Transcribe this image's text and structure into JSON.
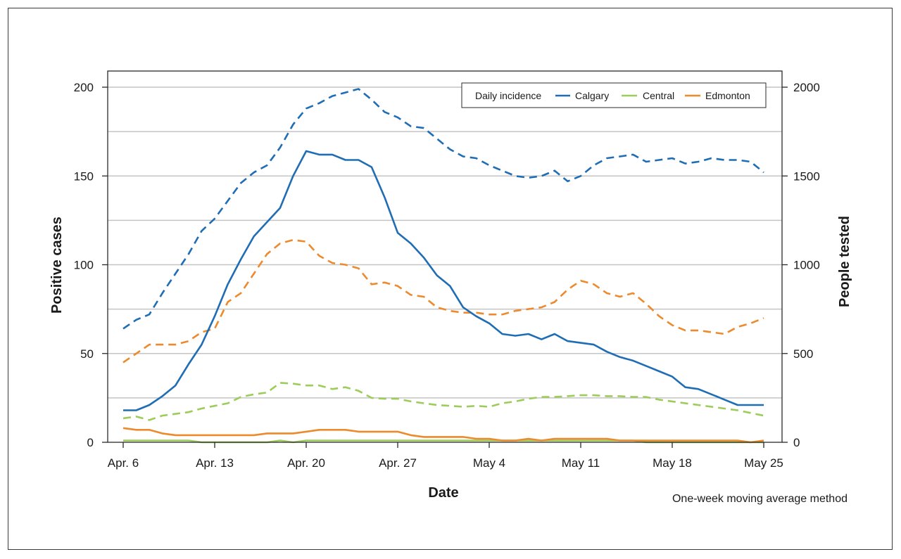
{
  "chart_data": {
    "type": "line",
    "xlabel": "Date",
    "ylabel": "Positive cases",
    "y2label": "People tested",
    "ylim": [
      0,
      200
    ],
    "y2lim": [
      0,
      2000
    ],
    "y_ticks": [
      "0",
      "50",
      "100",
      "150",
      "200"
    ],
    "y2_ticks": [
      "0",
      "500",
      "1000",
      "1500",
      "2000"
    ],
    "x_ticks": [
      {
        "day": 0,
        "label": "Apr. 6"
      },
      {
        "day": 7,
        "label": "Apr. 13"
      },
      {
        "day": 14,
        "label": "Apr. 20"
      },
      {
        "day": 21,
        "label": "Apr. 27"
      },
      {
        "day": 28,
        "label": "May 4"
      },
      {
        "day": 35,
        "label": "May 11"
      },
      {
        "day": 42,
        "label": "May 18"
      },
      {
        "day": 49,
        "label": "May 25"
      }
    ],
    "grid": true,
    "legend": {
      "title": "Daily incidence",
      "placement": "top-right",
      "entries": [
        {
          "name": "Calgary",
          "color": "#1f6db5"
        },
        {
          "name": "Central",
          "color": "#9ccc5a"
        },
        {
          "name": "Edmonton",
          "color": "#ec8a2d"
        }
      ]
    },
    "note": "One-week moving average method",
    "series": [
      {
        "name": "Calgary",
        "metric": "Positive cases",
        "axis": "left",
        "style": "solid",
        "color": "#1f6db5",
        "values": [
          18,
          18,
          21,
          26,
          32,
          44,
          55,
          71,
          89,
          103,
          116,
          124,
          132,
          150,
          164,
          162,
          162,
          159,
          159,
          155,
          138,
          118,
          112,
          104,
          94,
          88,
          76,
          71,
          67,
          61,
          60,
          61,
          58,
          61,
          57,
          56,
          55,
          51,
          48,
          46,
          43,
          40,
          37,
          31,
          30,
          27,
          24,
          21,
          21,
          21
        ]
      },
      {
        "name": "Central",
        "metric": "Positive cases",
        "axis": "left",
        "style": "solid",
        "color": "#9ccc5a",
        "values": [
          1,
          1,
          1,
          1,
          1,
          1,
          0,
          0,
          0,
          0,
          0,
          0,
          1,
          0,
          1,
          1,
          1,
          1,
          1,
          1,
          1,
          1,
          1,
          1,
          1,
          1,
          1,
          1,
          1,
          1,
          1,
          1,
          1,
          1,
          1,
          1,
          1,
          1,
          1,
          1,
          0,
          0,
          0,
          0,
          0,
          0,
          0,
          0,
          0,
          0
        ]
      },
      {
        "name": "Edmonton",
        "metric": "Positive cases",
        "axis": "left",
        "style": "solid",
        "color": "#ec8a2d",
        "values": [
          8,
          7,
          7,
          5,
          4,
          4,
          4,
          4,
          4,
          4,
          4,
          5,
          5,
          5,
          6,
          7,
          7,
          7,
          6,
          6,
          6,
          6,
          4,
          3,
          3,
          3,
          3,
          2,
          2,
          1,
          1,
          2,
          1,
          2,
          2,
          2,
          2,
          2,
          1,
          1,
          1,
          1,
          1,
          1,
          1,
          1,
          1,
          1,
          0,
          1
        ]
      },
      {
        "name": "Calgary",
        "metric": "People tested",
        "axis": "right",
        "style": "dashed",
        "color": "#1f6db5",
        "values": [
          640,
          690,
          720,
          840,
          950,
          1060,
          1190,
          1260,
          1360,
          1460,
          1520,
          1560,
          1660,
          1790,
          1880,
          1910,
          1950,
          1970,
          1990,
          1930,
          1860,
          1830,
          1780,
          1770,
          1710,
          1650,
          1610,
          1600,
          1560,
          1530,
          1500,
          1490,
          1500,
          1530,
          1470,
          1500,
          1560,
          1600,
          1610,
          1620,
          1580,
          1590,
          1600,
          1570,
          1580,
          1600,
          1590,
          1590,
          1580,
          1520
        ]
      },
      {
        "name": "Central",
        "metric": "People tested",
        "axis": "right",
        "style": "dashed",
        "color": "#9ccc5a",
        "values": [
          135,
          145,
          125,
          150,
          160,
          170,
          190,
          205,
          220,
          255,
          270,
          280,
          335,
          330,
          320,
          320,
          300,
          310,
          290,
          250,
          245,
          245,
          230,
          220,
          210,
          205,
          200,
          205,
          200,
          220,
          230,
          245,
          255,
          255,
          260,
          265,
          265,
          260,
          260,
          255,
          255,
          240,
          230,
          220,
          210,
          200,
          190,
          180,
          165,
          150
        ]
      },
      {
        "name": "Edmonton",
        "metric": "People tested",
        "axis": "right",
        "style": "dashed",
        "color": "#ec8a2d",
        "values": [
          450,
          500,
          550,
          550,
          550,
          570,
          620,
          640,
          790,
          840,
          950,
          1060,
          1120,
          1140,
          1130,
          1050,
          1010,
          1000,
          980,
          890,
          900,
          880,
          830,
          820,
          760,
          740,
          730,
          730,
          720,
          720,
          740,
          750,
          760,
          790,
          860,
          910,
          890,
          840,
          820,
          840,
          780,
          710,
          660,
          630,
          630,
          620,
          610,
          650,
          670,
          700
        ]
      }
    ]
  }
}
